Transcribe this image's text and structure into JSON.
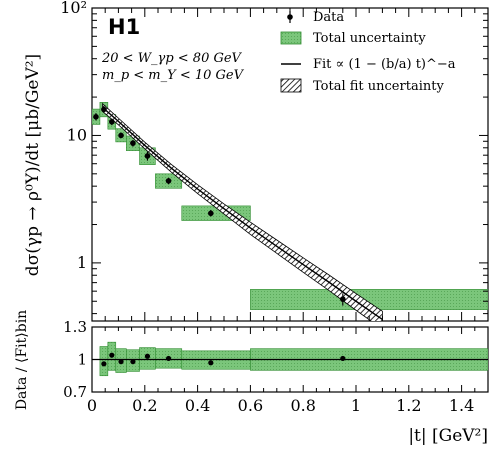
{
  "brand": {
    "logo_text": "H1"
  },
  "notes": {
    "kinematics": "20 < W_γp < 80 GeV",
    "mass": "m_p < m_Y < 10 GeV"
  },
  "colors": {
    "band_fill": "#7bc67b",
    "band_edge": "#2e8b2e",
    "hatch": "#000000",
    "marker": "#000000"
  },
  "legend": {
    "placement": "top-right",
    "items": [
      {
        "label": "Data",
        "symbol": "point-errorbar"
      },
      {
        "label": "Total uncertainty",
        "symbol": "green-box"
      },
      {
        "label": "Fit ∝ (1 − (b/a) t)^−a",
        "symbol": "line"
      },
      {
        "label": "Total fit uncertainty",
        "symbol": "hatched-box"
      }
    ]
  },
  "chart_data": [
    {
      "type": "scatter",
      "panel": "main",
      "title": "",
      "ylabel": "dσ(γp → ρ⁰Y)/dt  [μb/GeV²]",
      "yscale": "log",
      "ylim": [
        0.35,
        100
      ],
      "xlim": [
        0,
        1.5
      ],
      "ytick_labels": [
        "1",
        "10",
        "10²"
      ],
      "ytick_values": [
        1,
        10,
        100
      ],
      "series": [
        {
          "name": "Data",
          "x": [
            0.015,
            0.045,
            0.075,
            0.11,
            0.155,
            0.21,
            0.29,
            0.45,
            0.95
          ],
          "y": [
            14.0,
            16.0,
            12.8,
            10.0,
            8.7,
            6.9,
            4.4,
            2.45,
            0.52
          ],
          "bin_low": [
            0.0,
            0.03,
            0.06,
            0.09,
            0.13,
            0.18,
            0.24,
            0.34,
            0.6
          ],
          "bin_high": [
            0.03,
            0.06,
            0.09,
            0.13,
            0.18,
            0.24,
            0.34,
            0.6,
            1.5
          ],
          "total_unc_low": [
            12.2,
            14.0,
            11.2,
            8.9,
            7.6,
            5.9,
            3.85,
            2.15,
            0.43
          ],
          "total_unc_high": [
            16.1,
            18.2,
            14.6,
            11.3,
            9.9,
            8.0,
            5.0,
            2.8,
            0.62
          ]
        }
      ],
      "fit": {
        "name": "Fit",
        "x": [
          0.04,
          0.1,
          0.2,
          0.3,
          0.4,
          0.5,
          0.6,
          0.7,
          0.8,
          0.9,
          1.0,
          1.1
        ],
        "y": [
          16.6,
          12.9,
          8.35,
          5.55,
          3.8,
          2.66,
          1.88,
          1.35,
          0.97,
          0.7,
          0.5,
          0.36
        ],
        "rel_unc": [
          0.07,
          0.06,
          0.06,
          0.07,
          0.08,
          0.09,
          0.11,
          0.12,
          0.13,
          0.14,
          0.15,
          0.16
        ]
      }
    },
    {
      "type": "scatter",
      "panel": "ratio",
      "ylabel": "Data / ⟨Fit⟩bin",
      "xlabel": "|t|  [GeV²]",
      "ylim": [
        0.7,
        1.3
      ],
      "xlim": [
        0,
        1.5
      ],
      "ytick_labels": [
        "0.7",
        "1",
        "1.3"
      ],
      "ytick_values": [
        0.7,
        1.0,
        1.3
      ],
      "xtick_labels": [
        "0",
        "0.2",
        "0.4",
        "0.6",
        "0.8",
        "1",
        "1.2",
        "1.4"
      ],
      "xtick_values": [
        0,
        0.2,
        0.4,
        0.6,
        0.8,
        1.0,
        1.2,
        1.4
      ],
      "series": [
        {
          "name": "Data",
          "x": [
            0.045,
            0.075,
            0.11,
            0.155,
            0.21,
            0.29,
            0.45,
            0.95
          ],
          "y": [
            0.96,
            1.04,
            0.98,
            0.98,
            1.03,
            1.01,
            0.97,
            1.01
          ],
          "bin_low": [
            0.03,
            0.06,
            0.09,
            0.13,
            0.18,
            0.24,
            0.34,
            0.6
          ],
          "bin_high": [
            0.06,
            0.09,
            0.13,
            0.18,
            0.24,
            0.34,
            0.6,
            1.5
          ],
          "unc_low": [
            0.85,
            0.9,
            0.88,
            0.89,
            0.91,
            0.92,
            0.91,
            0.9
          ],
          "unc_high": [
            1.12,
            1.16,
            1.1,
            1.09,
            1.11,
            1.1,
            1.08,
            1.1
          ]
        }
      ],
      "reference_line": 1.0
    }
  ]
}
